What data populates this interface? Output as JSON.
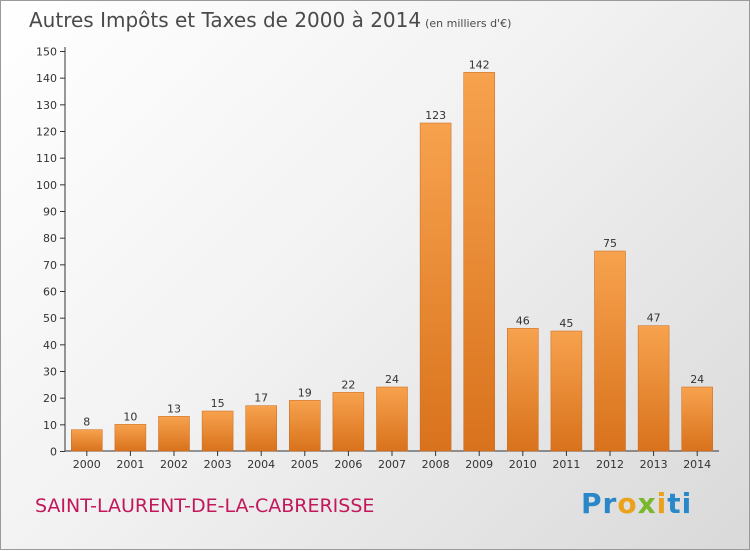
{
  "header": {
    "title": "Autres Impôts et Taxes de 2000 à 2014",
    "unit": "(en milliers d'€)"
  },
  "footer": {
    "town": "SAINT-LAURENT-DE-LA-CABRERISSE",
    "brand_parts": [
      "Pr",
      "o",
      "x",
      "i",
      "ti"
    ]
  },
  "colors": {
    "bar_top": "#f7a24e",
    "bar_bottom": "#d9721c",
    "bar_edge": "#c8661a",
    "axis": "#333333",
    "town": "#c2185b"
  },
  "chart_data": {
    "type": "bar",
    "title": "Autres Impôts et Taxes de 2000 à 2014",
    "subtitle": "(en milliers d'€)",
    "categories": [
      "2000",
      "2001",
      "2002",
      "2003",
      "2004",
      "2005",
      "2006",
      "2007",
      "2008",
      "2009",
      "2010",
      "2011",
      "2012",
      "2013",
      "2014"
    ],
    "values": [
      8,
      10,
      13,
      15,
      17,
      19,
      22,
      24,
      123,
      142,
      46,
      45,
      75,
      47,
      24
    ],
    "ylim": [
      0,
      150
    ],
    "yticks": [
      0,
      10,
      20,
      30,
      40,
      50,
      60,
      70,
      80,
      90,
      100,
      110,
      120,
      130,
      140,
      150
    ],
    "grid": false,
    "data_labels": true
  }
}
